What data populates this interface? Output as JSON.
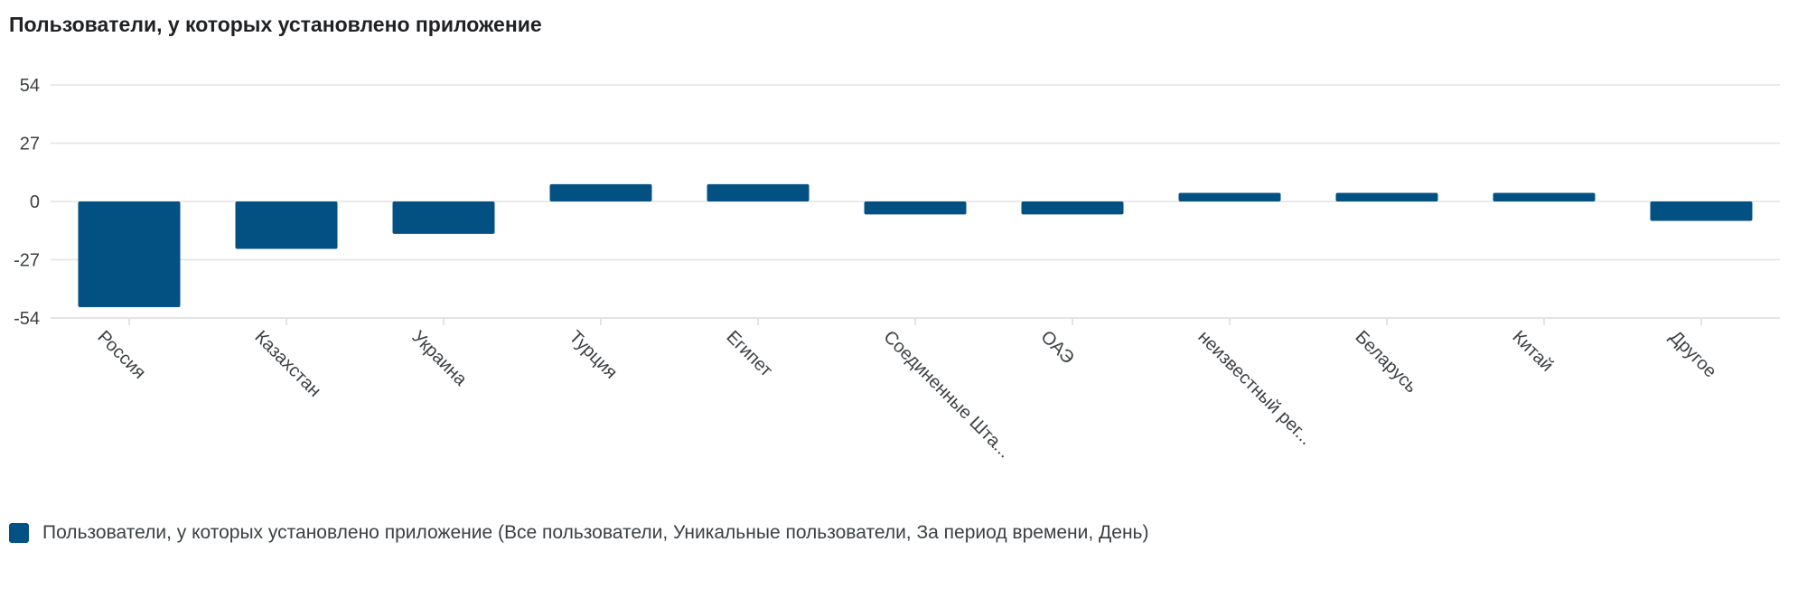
{
  "colors": {
    "bar": "#035083",
    "grid": "#e4e4e4",
    "axis_text": "#3c4043"
  },
  "chart_data": {
    "type": "bar",
    "title": "Пользователи, у которых установлено приложение",
    "categories": [
      "Россия",
      "Казахстан",
      "Украина",
      "Турция",
      "Египет",
      "Соединенные Шта...",
      "ОАЭ",
      "неизвестный рег...",
      "Беларусь",
      "Китай",
      "Другое"
    ],
    "series": [
      {
        "name": "Пользователи, у которых установлено приложение (Все пользователи, Уникальные пользователи, За период времени, День)",
        "values": [
          -49,
          -22,
          -15,
          8,
          8,
          -6,
          -6,
          4,
          4,
          4,
          -9
        ]
      }
    ],
    "yticks": [
      54,
      27,
      0,
      -27,
      -54
    ],
    "ylim": [
      -54,
      54
    ],
    "grid": true,
    "legend_position": "bottom-left"
  }
}
